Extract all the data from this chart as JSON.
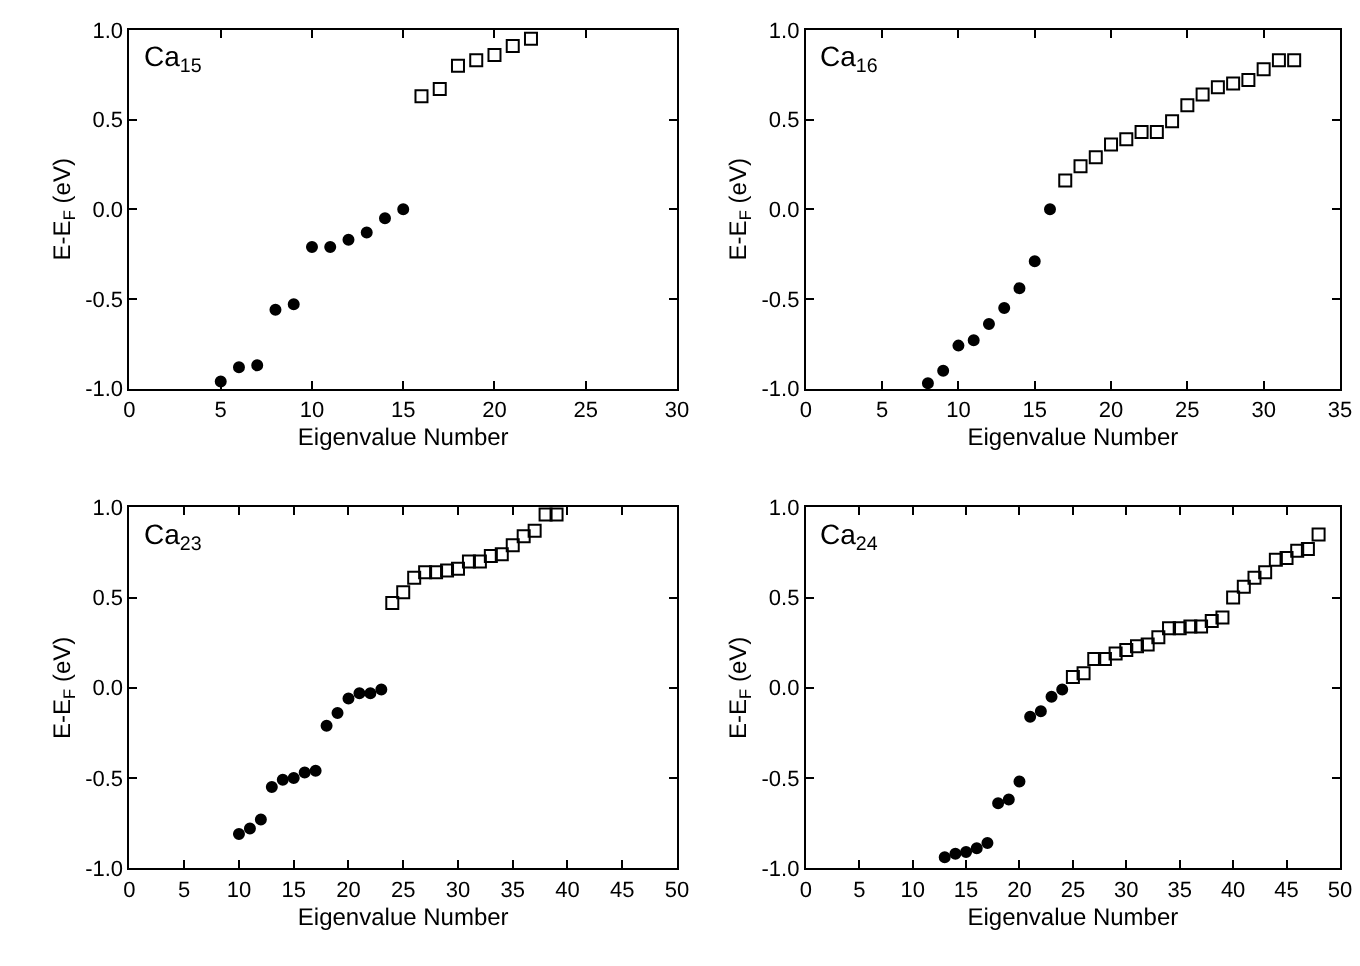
{
  "chart_data": [
    {
      "type": "scatter",
      "title": "Ca$_{15}$",
      "xlabel": "Eigenvalue Number",
      "ylabel": "E-E$_{F}$ (eV)",
      "xlim": [
        0,
        30
      ],
      "xticks": [
        0,
        5,
        10,
        15,
        20,
        25,
        30
      ],
      "ylim": [
        -1,
        1
      ],
      "yticks": [
        {
          "value": -1,
          "label": "-1.0"
        },
        {
          "value": -0.5,
          "label": "-0.5"
        },
        {
          "value": 0,
          "label": "0.0"
        },
        {
          "value": 0.5,
          "label": "0.5"
        },
        {
          "value": 1,
          "label": "1.0"
        }
      ],
      "series": [
        {
          "color": "#000000",
          "marker": "circle",
          "x": [
            5,
            6,
            7,
            8,
            9,
            10,
            11,
            12,
            13,
            14,
            15
          ],
          "values": [
            -0.96,
            -0.88,
            -0.87,
            -0.56,
            -0.53,
            -0.21,
            -0.21,
            -0.17,
            -0.13,
            -0.05,
            0.0
          ]
        },
        {
          "color": "#000000",
          "marker": "square",
          "x": [
            16,
            17,
            18,
            19,
            20,
            21,
            22
          ],
          "values": [
            0.63,
            0.67,
            0.8,
            0.83,
            0.86,
            0.91,
            0.95
          ]
        }
      ]
    },
    {
      "type": "scatter",
      "title": "Ca$_{16}$",
      "xlabel": "Eigenvalue Number",
      "ylabel": "E-E$_{F}$ (eV)",
      "xlim": [
        0,
        35
      ],
      "xticks": [
        0,
        5,
        10,
        15,
        20,
        25,
        30,
        35
      ],
      "ylim": [
        -1,
        1
      ],
      "yticks": [
        {
          "value": -1,
          "label": "-1.0"
        },
        {
          "value": -0.5,
          "label": "-0.5"
        },
        {
          "value": 0,
          "label": "0.0"
        },
        {
          "value": 0.5,
          "label": "0.5"
        },
        {
          "value": 1,
          "label": "1.0"
        }
      ],
      "series": [
        {
          "color": "#000000",
          "marker": "circle",
          "x": [
            8,
            9,
            10,
            11,
            12,
            13,
            14,
            15,
            16
          ],
          "values": [
            -0.97,
            -0.9,
            -0.76,
            -0.73,
            -0.64,
            -0.55,
            -0.44,
            -0.29,
            0.0
          ]
        },
        {
          "color": "#000000",
          "marker": "square",
          "x": [
            17,
            18,
            19,
            20,
            21,
            22,
            23,
            24,
            25,
            26,
            27,
            28,
            29,
            30,
            31,
            32
          ],
          "values": [
            0.16,
            0.24,
            0.29,
            0.36,
            0.39,
            0.43,
            0.43,
            0.49,
            0.58,
            0.64,
            0.68,
            0.7,
            0.72,
            0.78,
            0.83,
            0.83
          ]
        }
      ]
    },
    {
      "type": "scatter",
      "title": "Ca$_{23}$",
      "xlabel": "Eigenvalue Number",
      "ylabel": "E-E$_{F}$ (eV)",
      "xlim": [
        0,
        50
      ],
      "xticks": [
        0,
        5,
        10,
        15,
        20,
        25,
        30,
        35,
        40,
        45,
        50
      ],
      "ylim": [
        -1,
        1
      ],
      "yticks": [
        {
          "value": -1,
          "label": "-1.0"
        },
        {
          "value": -0.5,
          "label": "-0.5"
        },
        {
          "value": 0,
          "label": "0.0"
        },
        {
          "value": 0.5,
          "label": "0.5"
        },
        {
          "value": 1,
          "label": "1.0"
        }
      ],
      "series": [
        {
          "color": "#000000",
          "marker": "circle",
          "x": [
            10,
            11,
            12,
            13,
            14,
            15,
            16,
            17,
            18,
            19,
            20,
            21,
            22,
            23
          ],
          "values": [
            -0.81,
            -0.78,
            -0.73,
            -0.55,
            -0.51,
            -0.5,
            -0.47,
            -0.46,
            -0.21,
            -0.14,
            -0.06,
            -0.03,
            -0.03,
            -0.01
          ]
        },
        {
          "color": "#000000",
          "marker": "square",
          "x": [
            24,
            25,
            26,
            27,
            28,
            29,
            30,
            31,
            32,
            33,
            34,
            35,
            36,
            37,
            38,
            39
          ],
          "values": [
            0.47,
            0.53,
            0.61,
            0.64,
            0.64,
            0.65,
            0.66,
            0.7,
            0.7,
            0.73,
            0.74,
            0.79,
            0.84,
            0.87,
            0.96,
            0.96
          ]
        }
      ]
    },
    {
      "type": "scatter",
      "title": "Ca$_{24}$",
      "xlabel": "Eigenvalue Number",
      "ylabel": "E-E$_{F}$ (eV)",
      "xlim": [
        0,
        50
      ],
      "xticks": [
        0,
        5,
        10,
        15,
        20,
        25,
        30,
        35,
        40,
        45,
        50
      ],
      "ylim": [
        -1,
        1
      ],
      "yticks": [
        {
          "value": -1,
          "label": "-1.0"
        },
        {
          "value": -0.5,
          "label": "-0.5"
        },
        {
          "value": 0,
          "label": "0.0"
        },
        {
          "value": 0.5,
          "label": "0.5"
        },
        {
          "value": 1,
          "label": "1.0"
        }
      ],
      "series": [
        {
          "color": "#000000",
          "marker": "circle",
          "x": [
            13,
            14,
            15,
            16,
            17,
            18,
            19,
            20,
            21,
            22,
            23,
            24
          ],
          "values": [
            -0.94,
            -0.92,
            -0.91,
            -0.89,
            -0.86,
            -0.64,
            -0.62,
            -0.52,
            -0.16,
            -0.13,
            -0.05,
            -0.01
          ]
        },
        {
          "color": "#000000",
          "marker": "square",
          "x": [
            25,
            26,
            27,
            28,
            29,
            30,
            31,
            32,
            33,
            34,
            35,
            36,
            37,
            38,
            39,
            40,
            41,
            42,
            43,
            44,
            45,
            46,
            47,
            48
          ],
          "values": [
            0.06,
            0.08,
            0.16,
            0.16,
            0.19,
            0.21,
            0.23,
            0.24,
            0.28,
            0.33,
            0.33,
            0.34,
            0.34,
            0.37,
            0.39,
            0.5,
            0.56,
            0.61,
            0.64,
            0.71,
            0.72,
            0.76,
            0.77,
            0.85
          ]
        }
      ]
    }
  ]
}
